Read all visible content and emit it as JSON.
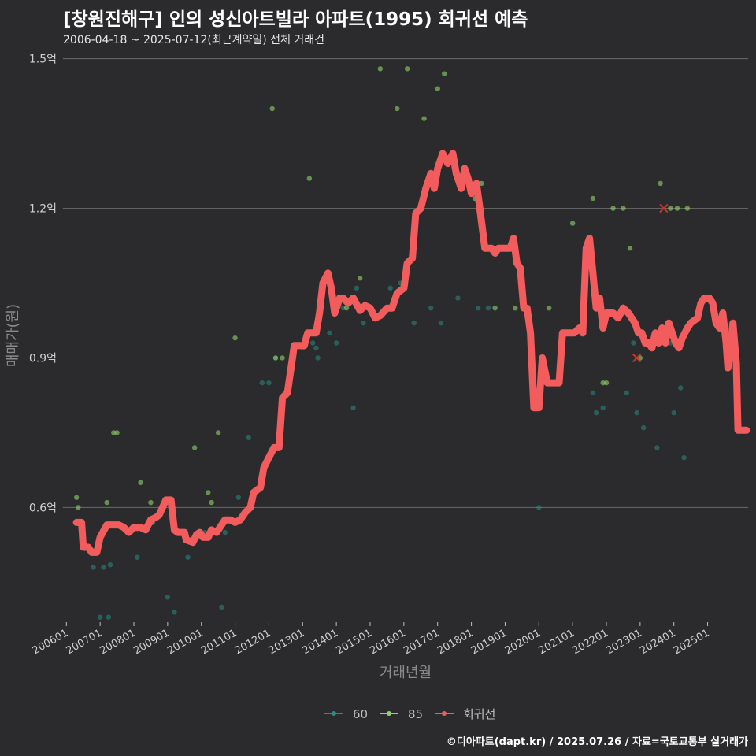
{
  "header": {
    "title": "[창원진해구] 인의 성신아트빌라 아파트(1995) 회귀선 예측",
    "subtitle": "2006-04-18 ~ 2025-07-12(최근계약일) 전체 거래건"
  },
  "footer": {
    "credit": "©디아파트(dapt.kr) / 2025.07.26 / 자료=국토교통부 실거래가"
  },
  "colors": {
    "background": "#2b2b2d",
    "series60": "#2a8c82",
    "series85": "#8fd36a",
    "regression": "#f25c5c",
    "grid": "#6b6b6b"
  },
  "chart_data": {
    "type": "scatter",
    "title": "[창원진해구] 인의 성신아트빌라 아파트(1995) 회귀선 예측",
    "xlabel": "거래년월",
    "ylabel": "매매가(원)",
    "ylim": [
      0.37,
      1.52
    ],
    "xlim": [
      2005.9,
      2026.2
    ],
    "grid": true,
    "legend_position": "bottom",
    "y_ticks": [
      {
        "value": 0.6,
        "label": "0.6억"
      },
      {
        "value": 0.9,
        "label": "0.9억"
      },
      {
        "value": 1.2,
        "label": "1.2억"
      },
      {
        "value": 1.5,
        "label": "1.5억"
      }
    ],
    "x_ticks": [
      {
        "value": 2006,
        "label": "200601"
      },
      {
        "value": 2007,
        "label": "200701"
      },
      {
        "value": 2008,
        "label": "200801"
      },
      {
        "value": 2009,
        "label": "200901"
      },
      {
        "value": 2010,
        "label": "201001"
      },
      {
        "value": 2011,
        "label": "201101"
      },
      {
        "value": 2012,
        "label": "201201"
      },
      {
        "value": 2013,
        "label": "201301"
      },
      {
        "value": 2014,
        "label": "201401"
      },
      {
        "value": 2015,
        "label": "201501"
      },
      {
        "value": 2016,
        "label": "201601"
      },
      {
        "value": 2017,
        "label": "201701"
      },
      {
        "value": 2018,
        "label": "201801"
      },
      {
        "value": 2019,
        "label": "201901"
      },
      {
        "value": 2020,
        "label": "202001"
      },
      {
        "value": 2021,
        "label": "202101"
      },
      {
        "value": 2022,
        "label": "202201"
      },
      {
        "value": 2023,
        "label": "202301"
      },
      {
        "value": 2024,
        "label": "202401"
      },
      {
        "value": 2025,
        "label": "202501"
      }
    ],
    "series": [
      {
        "name": "60",
        "kind": "points",
        "color": "#2a8c82",
        "points": [
          [
            2006.8,
            0.48
          ],
          [
            2007.0,
            0.38
          ],
          [
            2007.1,
            0.48
          ],
          [
            2007.25,
            0.38
          ],
          [
            2007.3,
            0.485
          ],
          [
            2007.9,
            0.55
          ],
          [
            2008.1,
            0.5
          ],
          [
            2009.0,
            0.42
          ],
          [
            2009.2,
            0.39
          ],
          [
            2009.6,
            0.5
          ],
          [
            2009.9,
            0.54
          ],
          [
            2010.1,
            0.55
          ],
          [
            2010.6,
            0.4
          ],
          [
            2010.7,
            0.55
          ],
          [
            2011.1,
            0.62
          ],
          [
            2011.4,
            0.74
          ],
          [
            2011.8,
            0.85
          ],
          [
            2012.0,
            0.85
          ],
          [
            2012.2,
            0.9
          ],
          [
            2013.0,
            0.92
          ],
          [
            2013.3,
            0.93
          ],
          [
            2013.4,
            0.92
          ],
          [
            2013.45,
            0.9
          ],
          [
            2013.6,
            1.05
          ],
          [
            2013.8,
            0.95
          ],
          [
            2014.0,
            0.93
          ],
          [
            2014.2,
            1.0
          ],
          [
            2014.5,
            0.8
          ],
          [
            2014.6,
            1.04
          ],
          [
            2014.8,
            0.97
          ],
          [
            2015.6,
            1.04
          ],
          [
            2015.9,
            1.05
          ],
          [
            2016.3,
            0.97
          ],
          [
            2016.8,
            1.0
          ],
          [
            2017.1,
            0.97
          ],
          [
            2017.6,
            1.02
          ],
          [
            2018.2,
            1.0
          ],
          [
            2018.5,
            1.0
          ],
          [
            2020.0,
            0.6
          ],
          [
            2021.6,
            0.83
          ],
          [
            2021.7,
            0.79
          ],
          [
            2021.9,
            0.8
          ],
          [
            2022.6,
            0.83
          ],
          [
            2022.8,
            0.93
          ],
          [
            2022.9,
            0.79
          ],
          [
            2023.1,
            0.76
          ],
          [
            2023.5,
            0.72
          ],
          [
            2023.9,
            0.93
          ],
          [
            2024.0,
            0.79
          ],
          [
            2024.2,
            0.84
          ],
          [
            2024.3,
            0.7
          ]
        ]
      },
      {
        "name": "85",
        "kind": "points",
        "color": "#8fd36a",
        "points": [
          [
            2006.3,
            0.62
          ],
          [
            2006.35,
            0.6
          ],
          [
            2006.5,
            0.55
          ],
          [
            2007.2,
            0.61
          ],
          [
            2007.4,
            0.75
          ],
          [
            2007.5,
            0.75
          ],
          [
            2008.2,
            0.65
          ],
          [
            2008.5,
            0.61
          ],
          [
            2008.55,
            0.57
          ],
          [
            2009.8,
            0.72
          ],
          [
            2010.2,
            0.63
          ],
          [
            2010.3,
            0.61
          ],
          [
            2010.5,
            0.75
          ],
          [
            2011.0,
            0.94
          ],
          [
            2012.1,
            1.4
          ],
          [
            2012.2,
            0.9
          ],
          [
            2012.4,
            0.9
          ],
          [
            2013.2,
            1.26
          ],
          [
            2014.3,
            1.0
          ],
          [
            2014.7,
            1.06
          ],
          [
            2015.3,
            1.48
          ],
          [
            2015.8,
            1.4
          ],
          [
            2016.1,
            1.48
          ],
          [
            2016.6,
            1.38
          ],
          [
            2017.0,
            1.44
          ],
          [
            2017.2,
            1.47
          ],
          [
            2018.0,
            1.24
          ],
          [
            2018.1,
            1.22
          ],
          [
            2018.3,
            1.25
          ],
          [
            2018.7,
            1.0
          ],
          [
            2019.3,
            1.0
          ],
          [
            2019.8,
            0.92
          ],
          [
            2020.3,
            1.0
          ],
          [
            2021.0,
            1.17
          ],
          [
            2021.4,
            1.08
          ],
          [
            2021.6,
            1.22
          ],
          [
            2021.9,
            0.85
          ],
          [
            2022.0,
            0.85
          ],
          [
            2022.2,
            1.2
          ],
          [
            2022.5,
            1.2
          ],
          [
            2022.7,
            1.12
          ],
          [
            2023.0,
            0.9
          ],
          [
            2023.6,
            1.25
          ],
          [
            2023.9,
            1.2
          ],
          [
            2024.1,
            1.2
          ],
          [
            2024.4,
            1.2
          ]
        ]
      },
      {
        "name": "회귀선",
        "kind": "line",
        "color": "#f25c5c",
        "crosses": [
          [
            2022.9,
            0.9
          ],
          [
            2023.7,
            1.2
          ]
        ],
        "points": [
          [
            2006.3,
            0.57
          ],
          [
            2006.45,
            0.57
          ],
          [
            2006.5,
            0.52
          ],
          [
            2006.65,
            0.52
          ],
          [
            2006.75,
            0.51
          ],
          [
            2006.9,
            0.51
          ],
          [
            2007.0,
            0.54
          ],
          [
            2007.2,
            0.565
          ],
          [
            2007.55,
            0.565
          ],
          [
            2007.7,
            0.56
          ],
          [
            2007.85,
            0.55
          ],
          [
            2008.0,
            0.56
          ],
          [
            2008.2,
            0.56
          ],
          [
            2008.35,
            0.555
          ],
          [
            2008.5,
            0.575
          ],
          [
            2008.65,
            0.58
          ],
          [
            2008.75,
            0.585
          ],
          [
            2008.85,
            0.6
          ],
          [
            2008.95,
            0.615
          ],
          [
            2009.1,
            0.615
          ],
          [
            2009.2,
            0.555
          ],
          [
            2009.3,
            0.55
          ],
          [
            2009.5,
            0.55
          ],
          [
            2009.55,
            0.535
          ],
          [
            2009.75,
            0.53
          ],
          [
            2009.85,
            0.545
          ],
          [
            2009.95,
            0.55
          ],
          [
            2010.05,
            0.54
          ],
          [
            2010.2,
            0.54
          ],
          [
            2010.3,
            0.555
          ],
          [
            2010.45,
            0.55
          ],
          [
            2010.55,
            0.56
          ],
          [
            2010.7,
            0.575
          ],
          [
            2010.85,
            0.575
          ],
          [
            2011.0,
            0.57
          ],
          [
            2011.15,
            0.575
          ],
          [
            2011.3,
            0.59
          ],
          [
            2011.45,
            0.6
          ],
          [
            2011.55,
            0.63
          ],
          [
            2011.75,
            0.64
          ],
          [
            2011.85,
            0.68
          ],
          [
            2012.0,
            0.7
          ],
          [
            2012.15,
            0.72
          ],
          [
            2012.3,
            0.72
          ],
          [
            2012.4,
            0.82
          ],
          [
            2012.55,
            0.83
          ],
          [
            2012.7,
            0.9
          ],
          [
            2012.75,
            0.925
          ],
          [
            2013.05,
            0.925
          ],
          [
            2013.15,
            0.95
          ],
          [
            2013.4,
            0.95
          ],
          [
            2013.5,
            0.99
          ],
          [
            2013.6,
            1.05
          ],
          [
            2013.75,
            1.07
          ],
          [
            2013.85,
            1.04
          ],
          [
            2013.95,
            0.99
          ],
          [
            2014.1,
            1.02
          ],
          [
            2014.2,
            1.02
          ],
          [
            2014.35,
            1.01
          ],
          [
            2014.5,
            1.02
          ],
          [
            2014.7,
            0.995
          ],
          [
            2014.85,
            1.005
          ],
          [
            2015.0,
            1.0
          ],
          [
            2015.15,
            0.98
          ],
          [
            2015.3,
            0.985
          ],
          [
            2015.5,
            1.0
          ],
          [
            2015.65,
            1.0
          ],
          [
            2015.8,
            1.03
          ],
          [
            2016.0,
            1.04
          ],
          [
            2016.1,
            1.09
          ],
          [
            2016.25,
            1.1
          ],
          [
            2016.35,
            1.19
          ],
          [
            2016.5,
            1.2
          ],
          [
            2016.65,
            1.24
          ],
          [
            2016.8,
            1.27
          ],
          [
            2016.9,
            1.24
          ],
          [
            2017.0,
            1.28
          ],
          [
            2017.15,
            1.31
          ],
          [
            2017.3,
            1.29
          ],
          [
            2017.45,
            1.31
          ],
          [
            2017.55,
            1.27
          ],
          [
            2017.7,
            1.24
          ],
          [
            2017.8,
            1.28
          ],
          [
            2017.9,
            1.26
          ],
          [
            2018.0,
            1.23
          ],
          [
            2018.15,
            1.25
          ],
          [
            2018.25,
            1.2
          ],
          [
            2018.4,
            1.12
          ],
          [
            2018.6,
            1.12
          ],
          [
            2018.7,
            1.11
          ],
          [
            2018.8,
            1.12
          ],
          [
            2018.95,
            1.12
          ],
          [
            2019.05,
            1.12
          ],
          [
            2019.15,
            1.12
          ],
          [
            2019.25,
            1.14
          ],
          [
            2019.35,
            1.09
          ],
          [
            2019.45,
            1.08
          ],
          [
            2019.55,
            1.0
          ],
          [
            2019.65,
            1.0
          ],
          [
            2019.75,
            0.95
          ],
          [
            2019.85,
            0.8
          ],
          [
            2020.0,
            0.8
          ],
          [
            2020.1,
            0.9
          ],
          [
            2020.25,
            0.85
          ],
          [
            2020.4,
            0.85
          ],
          [
            2020.6,
            0.85
          ],
          [
            2020.7,
            0.95
          ],
          [
            2021.05,
            0.95
          ],
          [
            2021.2,
            0.96
          ],
          [
            2021.3,
            0.95
          ],
          [
            2021.4,
            1.12
          ],
          [
            2021.5,
            1.14
          ],
          [
            2021.6,
            1.07
          ],
          [
            2021.7,
            1.0
          ],
          [
            2021.8,
            1.02
          ],
          [
            2021.9,
            0.96
          ],
          [
            2022.0,
            0.99
          ],
          [
            2022.2,
            0.99
          ],
          [
            2022.35,
            0.98
          ],
          [
            2022.5,
            1.0
          ],
          [
            2022.65,
            0.99
          ],
          [
            2022.75,
            0.98
          ],
          [
            2022.85,
            0.97
          ],
          [
            2022.95,
            0.95
          ],
          [
            2023.05,
            0.95
          ],
          [
            2023.15,
            0.93
          ],
          [
            2023.25,
            0.93
          ],
          [
            2023.35,
            0.92
          ],
          [
            2023.45,
            0.95
          ],
          [
            2023.55,
            0.93
          ],
          [
            2023.65,
            0.96
          ],
          [
            2023.75,
            0.93
          ],
          [
            2023.85,
            0.97
          ],
          [
            2023.95,
            0.95
          ],
          [
            2024.05,
            0.93
          ],
          [
            2024.15,
            0.92
          ],
          [
            2024.25,
            0.94
          ],
          [
            2024.4,
            0.96
          ],
          [
            2024.5,
            0.97
          ],
          [
            2024.6,
            0.975
          ],
          [
            2024.7,
            0.98
          ],
          [
            2024.8,
            1.01
          ],
          [
            2024.9,
            1.02
          ],
          [
            2025.05,
            1.02
          ],
          [
            2025.15,
            1.01
          ],
          [
            2025.25,
            0.97
          ],
          [
            2025.35,
            0.96
          ],
          [
            2025.45,
            0.99
          ],
          [
            2025.55,
            0.93
          ],
          [
            2025.6,
            0.88
          ],
          [
            2025.65,
            0.9
          ],
          [
            2025.75,
            0.97
          ],
          [
            2025.85,
            0.89
          ],
          [
            2025.9,
            0.755
          ],
          [
            2026.15,
            0.755
          ]
        ]
      }
    ]
  }
}
